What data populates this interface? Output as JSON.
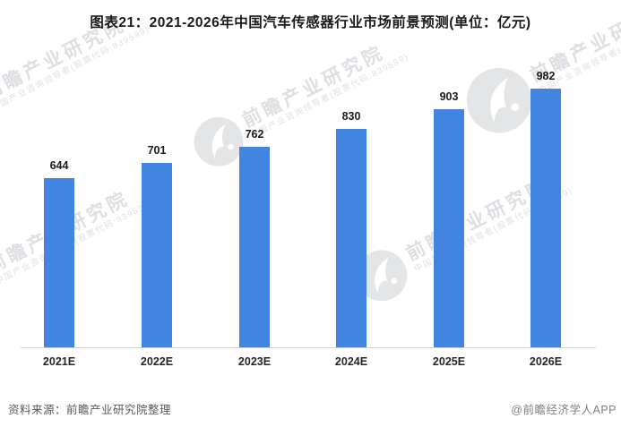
{
  "title": "图表21：2021-2026年中国汽车传感器行业市场前景预测(单位：亿元)",
  "chart_data": {
    "type": "bar",
    "title": "图表21：2021-2026年中国汽车传感器行业市场前景预测",
    "unit": "亿元",
    "categories": [
      "2021E",
      "2022E",
      "2023E",
      "2024E",
      "2025E",
      "2026E"
    ],
    "values": [
      644,
      701,
      762,
      830,
      903,
      982
    ],
    "xlabel": "",
    "ylabel": "",
    "ylim": [
      0,
      1040
    ],
    "grid": false,
    "legend": false,
    "value_labels": true,
    "bar_color": "#4184e1"
  },
  "source": {
    "label": "资料来源：前瞻产业研究院整理"
  },
  "attribution": {
    "label": "@前瞻经济学人APP"
  },
  "watermark": {
    "brand": "前瞻产业研究院",
    "subtitle": "中国产业咨询领导者(股票代码:839599)"
  },
  "colors": {
    "bar": "#4184e1",
    "title_text": "#1a1a1a",
    "axis_line": "#d4d4d4",
    "source_text": "#595959",
    "attribution_text": "#7f7f7f",
    "watermark": "#ced2d7",
    "background": "#ffffff"
  }
}
